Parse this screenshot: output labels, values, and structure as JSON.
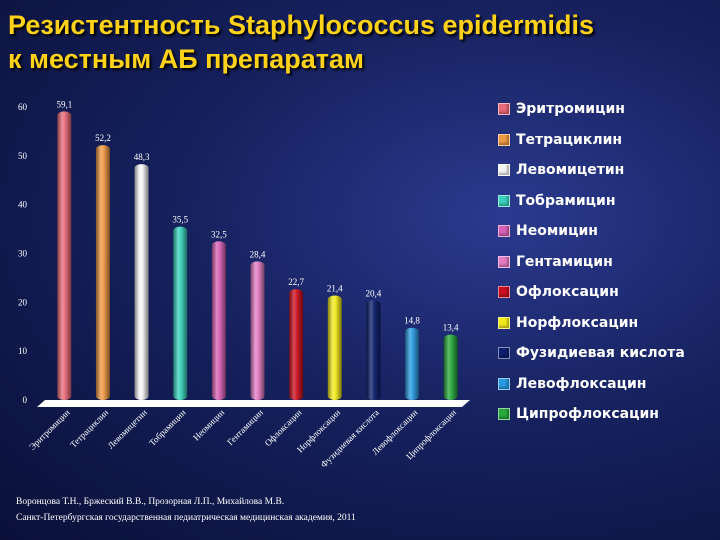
{
  "slide": {
    "title_line1": "Резистентность Staphylococcus epidermidis",
    "title_line2": "к местным АБ препаратам",
    "footnote_line1": "Воронцова Т.Н., Бржеский В.В., Прозорная Л.П., Михайлова М.В.",
    "footnote_line2": "Санкт-Петербургская государственная педиатрическая медицинская академия, 2011"
  },
  "chart_data": {
    "type": "bar",
    "title": "",
    "xlabel": "",
    "ylabel": "",
    "ylim": [
      0,
      60
    ],
    "yticks": [
      "0",
      "10",
      "20",
      "30",
      "40",
      "50",
      "60"
    ],
    "legend_position": "right",
    "grid": false,
    "categories": [
      "Эритромицин",
      "Тетрациклин",
      "Левомицетин",
      "Тобрамицин",
      "Неомицин",
      "Гентамицин",
      "Офлоксацин",
      "Норфлоксацин",
      "Фузидиевая кислота",
      "Левофлоксацин",
      "Ципрофлоксацин"
    ],
    "values": [
      59.1,
      52.2,
      48.3,
      35.5,
      32.5,
      28.4,
      22.7,
      21.4,
      20.4,
      14.8,
      13.4
    ],
    "value_labels": [
      "59,1",
      "52,2",
      "48,3",
      "35,5",
      "32,5",
      "28,4",
      "22,7",
      "21,4",
      "20,4",
      "14,8",
      "13,4"
    ],
    "colors": [
      "#e86b78",
      "#ee9a44",
      "#f4f4f4",
      "#39d1bd",
      "#d761b3",
      "#e27bc4",
      "#cc1020",
      "#f3ea1c",
      "#0c1f6e",
      "#2a9ae0",
      "#28a83c"
    ]
  }
}
